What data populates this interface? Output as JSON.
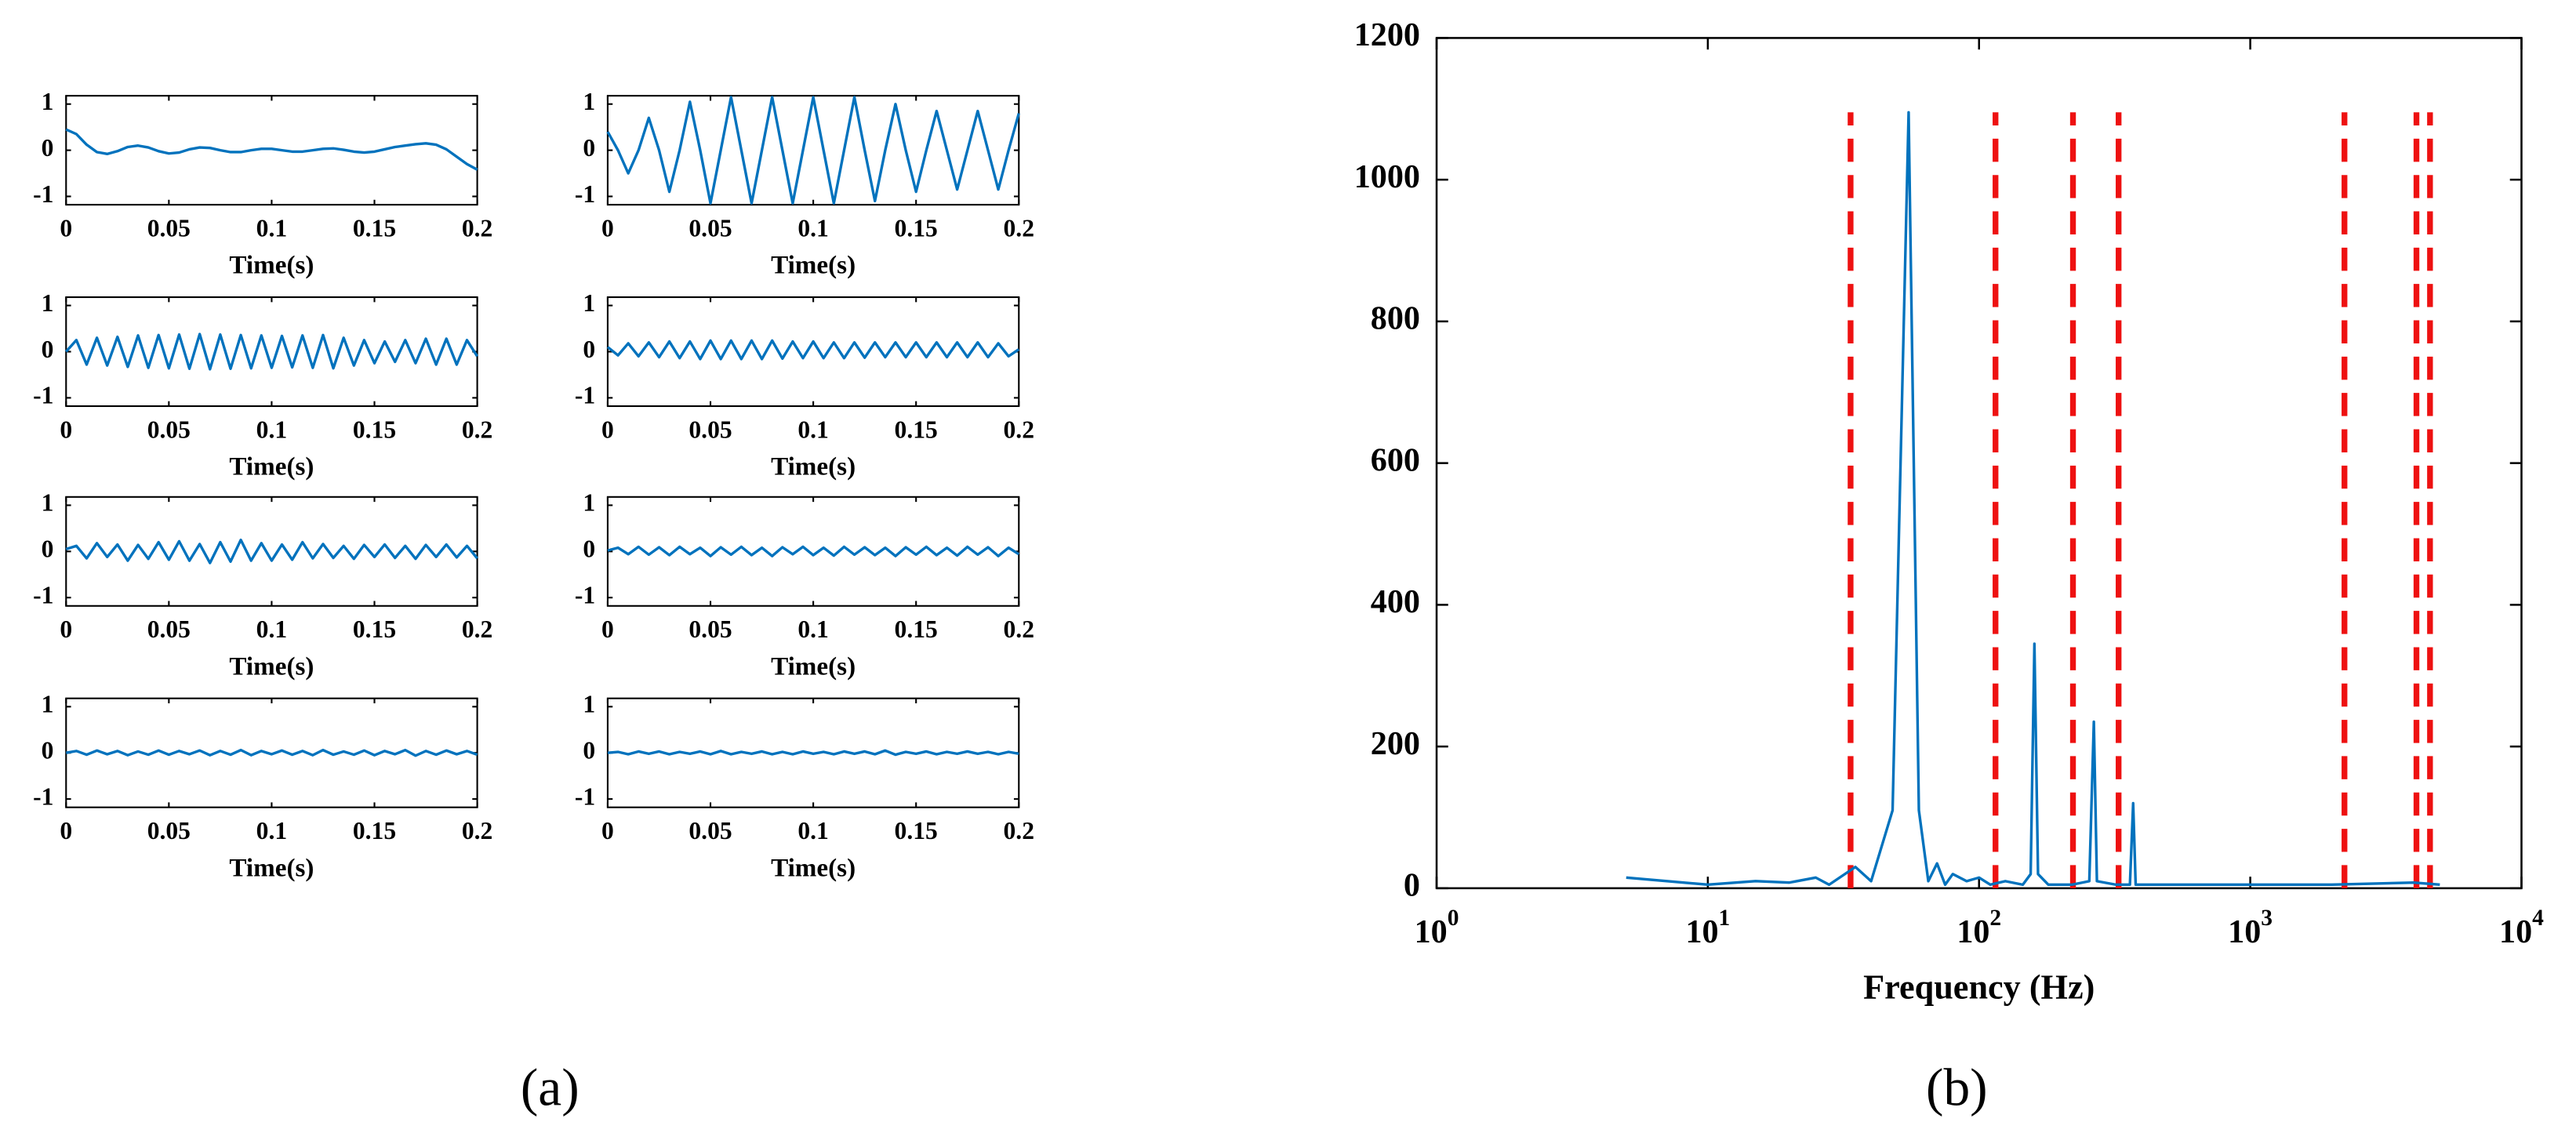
{
  "chart_data": [
    {
      "type": "line",
      "xlabel": "Time(s)",
      "color": "#0072bd",
      "xlim": [
        0,
        0.2
      ],
      "ylim": [
        -1.18,
        1.18
      ],
      "xticks": [
        0,
        0.05,
        0.1,
        0.15,
        0.2
      ],
      "yticks": [
        -1,
        0,
        1
      ],
      "x": [
        0,
        0.005,
        0.01,
        0.015,
        0.02,
        0.025,
        0.03,
        0.035,
        0.04,
        0.045,
        0.05,
        0.055,
        0.06,
        0.065,
        0.07,
        0.075,
        0.08,
        0.085,
        0.09,
        0.095,
        0.1,
        0.105,
        0.11,
        0.115,
        0.12,
        0.125,
        0.13,
        0.135,
        0.14,
        0.145,
        0.15,
        0.155,
        0.16,
        0.165,
        0.17,
        0.175,
        0.18,
        0.185,
        0.19,
        0.195,
        0.2
      ],
      "values": [
        0.45,
        0.35,
        0.12,
        -0.04,
        -0.08,
        -0.02,
        0.07,
        0.1,
        0.06,
        -0.02,
        -0.07,
        -0.05,
        0.02,
        0.06,
        0.05,
        0,
        -0.04,
        -0.04,
        0,
        0.03,
        0.03,
        0,
        -0.03,
        -0.03,
        0,
        0.03,
        0.04,
        0.01,
        -0.03,
        -0.05,
        -0.03,
        0.02,
        0.07,
        0.1,
        0.13,
        0.15,
        0.12,
        0.02,
        -0.14,
        -0.3,
        -0.42
      ]
    },
    {
      "type": "line",
      "xlabel": "Time(s)",
      "color": "#0072bd",
      "xlim": [
        0,
        0.2
      ],
      "ylim": [
        -1.18,
        1.18
      ],
      "xticks": [
        0,
        0.05,
        0.1,
        0.15,
        0.2
      ],
      "yticks": [
        -1,
        0,
        1
      ],
      "x": [
        0,
        0.005,
        0.01,
        0.015,
        0.02,
        0.025,
        0.03,
        0.035,
        0.04,
        0.045,
        0.05,
        0.055,
        0.06,
        0.065,
        0.07,
        0.075,
        0.08,
        0.085,
        0.09,
        0.095,
        0.1,
        0.105,
        0.11,
        0.115,
        0.12,
        0.125,
        0.13,
        0.135,
        0.14,
        0.145,
        0.15,
        0.155,
        0.16,
        0.165,
        0.17,
        0.175,
        0.18,
        0.185,
        0.19,
        0.195,
        0.2
      ],
      "values": [
        0.4,
        0,
        -0.5,
        0,
        0.7,
        0,
        -0.9,
        0,
        1.05,
        0,
        -1.15,
        0,
        1.15,
        0,
        -1.15,
        0,
        1.15,
        0,
        -1.15,
        0,
        1.15,
        0,
        -1.15,
        0,
        1.15,
        0,
        -1.1,
        0,
        1.0,
        0,
        -0.9,
        0,
        0.85,
        0,
        -0.85,
        0,
        0.85,
        0,
        -0.85,
        0,
        0.8
      ]
    },
    {
      "type": "line",
      "xlabel": "Time(s)",
      "color": "#0072bd",
      "xlim": [
        0,
        0.2
      ],
      "ylim": [
        -1.18,
        1.18
      ],
      "xticks": [
        0,
        0.05,
        0.1,
        0.15,
        0.2
      ],
      "yticks": [
        -1,
        0,
        1
      ],
      "x": [
        0,
        0.005,
        0.01,
        0.015,
        0.02,
        0.025,
        0.03,
        0.035,
        0.04,
        0.045,
        0.05,
        0.055,
        0.06,
        0.065,
        0.07,
        0.075,
        0.08,
        0.085,
        0.09,
        0.095,
        0.1,
        0.105,
        0.11,
        0.115,
        0.12,
        0.125,
        0.13,
        0.135,
        0.14,
        0.145,
        0.15,
        0.155,
        0.16,
        0.165,
        0.17,
        0.175,
        0.18,
        0.185,
        0.19,
        0.195,
        0.2
      ],
      "values": [
        0,
        0.25,
        -0.28,
        0.3,
        -0.3,
        0.32,
        -0.33,
        0.35,
        -0.35,
        0.36,
        -0.36,
        0.37,
        -0.37,
        0.38,
        -0.38,
        0.37,
        -0.37,
        0.36,
        -0.36,
        0.35,
        -0.35,
        0.34,
        -0.34,
        0.35,
        -0.35,
        0.36,
        -0.36,
        0.3,
        -0.3,
        0.25,
        -0.25,
        0.22,
        -0.22,
        0.25,
        -0.25,
        0.28,
        -0.28,
        0.28,
        -0.28,
        0.25,
        -0.1
      ]
    },
    {
      "type": "line",
      "xlabel": "Time(s)",
      "color": "#0072bd",
      "xlim": [
        0,
        0.2
      ],
      "ylim": [
        -1.18,
        1.18
      ],
      "xticks": [
        0,
        0.05,
        0.1,
        0.15,
        0.2
      ],
      "yticks": [
        -1,
        0,
        1
      ],
      "x": [
        0,
        0.005,
        0.01,
        0.015,
        0.02,
        0.025,
        0.03,
        0.035,
        0.04,
        0.045,
        0.05,
        0.055,
        0.06,
        0.065,
        0.07,
        0.075,
        0.08,
        0.085,
        0.09,
        0.095,
        0.1,
        0.105,
        0.11,
        0.115,
        0.12,
        0.125,
        0.13,
        0.135,
        0.14,
        0.145,
        0.15,
        0.155,
        0.16,
        0.165,
        0.17,
        0.175,
        0.18,
        0.185,
        0.19,
        0.195,
        0.2
      ],
      "values": [
        0.1,
        -0.08,
        0.18,
        -0.1,
        0.2,
        -0.12,
        0.22,
        -0.14,
        0.22,
        -0.16,
        0.24,
        -0.16,
        0.24,
        -0.16,
        0.24,
        -0.16,
        0.24,
        -0.15,
        0.22,
        -0.14,
        0.22,
        -0.14,
        0.2,
        -0.14,
        0.2,
        -0.13,
        0.2,
        -0.12,
        0.2,
        -0.12,
        0.2,
        -0.12,
        0.2,
        -0.12,
        0.2,
        -0.12,
        0.2,
        -0.12,
        0.18,
        -0.1,
        0.05
      ]
    },
    {
      "type": "line",
      "xlabel": "Time(s)",
      "color": "#0072bd",
      "xlim": [
        0,
        0.2
      ],
      "ylim": [
        -1.18,
        1.18
      ],
      "xticks": [
        0,
        0.05,
        0.1,
        0.15,
        0.2
      ],
      "yticks": [
        -1,
        0,
        1
      ],
      "x": [
        0,
        0.005,
        0.01,
        0.015,
        0.02,
        0.025,
        0.03,
        0.035,
        0.04,
        0.045,
        0.05,
        0.055,
        0.06,
        0.065,
        0.07,
        0.075,
        0.08,
        0.085,
        0.09,
        0.095,
        0.1,
        0.105,
        0.11,
        0.115,
        0.12,
        0.125,
        0.13,
        0.135,
        0.14,
        0.145,
        0.15,
        0.155,
        0.16,
        0.165,
        0.17,
        0.175,
        0.18,
        0.185,
        0.19,
        0.195,
        0.2
      ],
      "values": [
        0.05,
        0.12,
        -0.15,
        0.18,
        -0.12,
        0.15,
        -0.2,
        0.14,
        -0.16,
        0.2,
        -0.18,
        0.22,
        -0.2,
        0.16,
        -0.25,
        0.2,
        -0.22,
        0.25,
        -0.2,
        0.18,
        -0.2,
        0.15,
        -0.18,
        0.2,
        -0.15,
        0.16,
        -0.14,
        0.12,
        -0.16,
        0.14,
        -0.12,
        0.15,
        -0.14,
        0.12,
        -0.16,
        0.14,
        -0.12,
        0.15,
        -0.13,
        0.12,
        -0.15
      ]
    },
    {
      "type": "line",
      "xlabel": "Time(s)",
      "color": "#0072bd",
      "xlim": [
        0,
        0.2
      ],
      "ylim": [
        -1.18,
        1.18
      ],
      "xticks": [
        0,
        0.05,
        0.1,
        0.15,
        0.2
      ],
      "yticks": [
        -1,
        0,
        1
      ],
      "x": [
        0,
        0.005,
        0.01,
        0.015,
        0.02,
        0.025,
        0.03,
        0.035,
        0.04,
        0.045,
        0.05,
        0.055,
        0.06,
        0.065,
        0.07,
        0.075,
        0.08,
        0.085,
        0.09,
        0.095,
        0.1,
        0.105,
        0.11,
        0.115,
        0.12,
        0.125,
        0.13,
        0.135,
        0.14,
        0.145,
        0.15,
        0.155,
        0.16,
        0.165,
        0.17,
        0.175,
        0.18,
        0.185,
        0.19,
        0.195,
        0.2
      ],
      "values": [
        0.02,
        0.08,
        -0.06,
        0.1,
        -0.07,
        0.09,
        -0.08,
        0.1,
        -0.06,
        0.08,
        -0.1,
        0.09,
        -0.07,
        0.1,
        -0.08,
        0.08,
        -0.1,
        0.09,
        -0.06,
        0.1,
        -0.08,
        0.08,
        -0.09,
        0.1,
        -0.07,
        0.09,
        -0.08,
        0.08,
        -0.1,
        0.09,
        -0.07,
        0.1,
        -0.08,
        0.08,
        -0.09,
        0.1,
        -0.07,
        0.09,
        -0.1,
        0.08,
        -0.06
      ]
    },
    {
      "type": "line",
      "xlabel": "Time(s)",
      "color": "#0072bd",
      "xlim": [
        0,
        0.2
      ],
      "ylim": [
        -1.18,
        1.18
      ],
      "xticks": [
        0,
        0.05,
        0.1,
        0.15,
        0.2
      ],
      "yticks": [
        -1,
        0,
        1
      ],
      "x": [
        0,
        0.005,
        0.01,
        0.015,
        0.02,
        0.025,
        0.03,
        0.035,
        0.04,
        0.045,
        0.05,
        0.055,
        0.06,
        0.065,
        0.07,
        0.075,
        0.08,
        0.085,
        0.09,
        0.095,
        0.1,
        0.105,
        0.11,
        0.115,
        0.12,
        0.125,
        0.13,
        0.135,
        0.14,
        0.145,
        0.15,
        0.155,
        0.16,
        0.165,
        0.17,
        0.175,
        0.18,
        0.185,
        0.19,
        0.195,
        0.2
      ],
      "values": [
        0,
        0.04,
        -0.04,
        0.05,
        -0.03,
        0.04,
        -0.05,
        0.03,
        -0.04,
        0.05,
        -0.04,
        0.04,
        -0.03,
        0.05,
        -0.05,
        0.04,
        -0.04,
        0.06,
        -0.05,
        0.04,
        -0.03,
        0.05,
        -0.04,
        0.04,
        -0.05,
        0.06,
        -0.04,
        0.03,
        -0.04,
        0.05,
        -0.05,
        0.04,
        -0.03,
        0.06,
        -0.06,
        0.04,
        -0.04,
        0.05,
        -0.03,
        0.04,
        -0.04
      ]
    },
    {
      "type": "line",
      "xlabel": "Time(s)",
      "color": "#0072bd",
      "xlim": [
        0,
        0.2
      ],
      "ylim": [
        -1.18,
        1.18
      ],
      "xticks": [
        0,
        0.05,
        0.1,
        0.15,
        0.2
      ],
      "yticks": [
        -1,
        0,
        1
      ],
      "x": [
        0,
        0.005,
        0.01,
        0.015,
        0.02,
        0.025,
        0.03,
        0.035,
        0.04,
        0.045,
        0.05,
        0.055,
        0.06,
        0.065,
        0.07,
        0.075,
        0.08,
        0.085,
        0.09,
        0.095,
        0.1,
        0.105,
        0.11,
        0.115,
        0.12,
        0.125,
        0.13,
        0.135,
        0.14,
        0.145,
        0.15,
        0.155,
        0.16,
        0.165,
        0.17,
        0.175,
        0.18,
        0.185,
        0.19,
        0.195,
        0.2
      ],
      "values": [
        0,
        0.02,
        -0.03,
        0.03,
        -0.02,
        0.03,
        -0.03,
        0.02,
        -0.02,
        0.03,
        -0.03,
        0.04,
        -0.03,
        0.02,
        -0.02,
        0.03,
        -0.03,
        0.02,
        -0.03,
        0.03,
        -0.02,
        0.02,
        -0.03,
        0.03,
        -0.02,
        0.03,
        -0.03,
        0.05,
        -0.04,
        0.02,
        -0.02,
        0.03,
        -0.03,
        0.02,
        -0.02,
        0.03,
        -0.02,
        0.02,
        -0.03,
        0.02,
        -0.02
      ]
    },
    {
      "type": "line",
      "xlabel": "Frequency (Hz)",
      "color": "#0072bd",
      "xscale": "log",
      "xlim": [
        1,
        10000
      ],
      "ylim": [
        0,
        1200
      ],
      "xticks": [
        {
          "value": 1,
          "label": "10^0"
        },
        {
          "value": 10,
          "label": "10^1"
        },
        {
          "value": 100,
          "label": "10^2"
        },
        {
          "value": 1000,
          "label": "10^3"
        },
        {
          "value": 10000,
          "label": "10^4"
        }
      ],
      "yticks": [
        0,
        200,
        400,
        600,
        800,
        1000,
        1200
      ],
      "x": [
        5,
        10,
        15,
        20,
        25,
        28,
        35,
        40,
        48,
        55,
        60,
        65,
        70,
        75,
        80,
        90,
        100,
        110,
        125,
        145,
        155,
        160,
        165,
        180,
        220,
        255,
        265,
        272,
        320,
        360,
        370,
        378,
        500,
        1000,
        2000,
        4000,
        5000
      ],
      "values": [
        15,
        5,
        10,
        8,
        15,
        5,
        30,
        10,
        110,
        1095,
        110,
        10,
        35,
        5,
        20,
        10,
        15,
        5,
        10,
        5,
        20,
        345,
        20,
        5,
        5,
        10,
        235,
        10,
        5,
        5,
        120,
        5,
        5,
        5,
        5,
        8,
        5
      ],
      "reference_lines": {
        "color": "#ee1111",
        "x": [
          33.6,
          115,
          222,
          327,
          2225,
          4100,
          4600
        ]
      }
    }
  ],
  "labels": [
    "(a)",
    "(b)"
  ]
}
